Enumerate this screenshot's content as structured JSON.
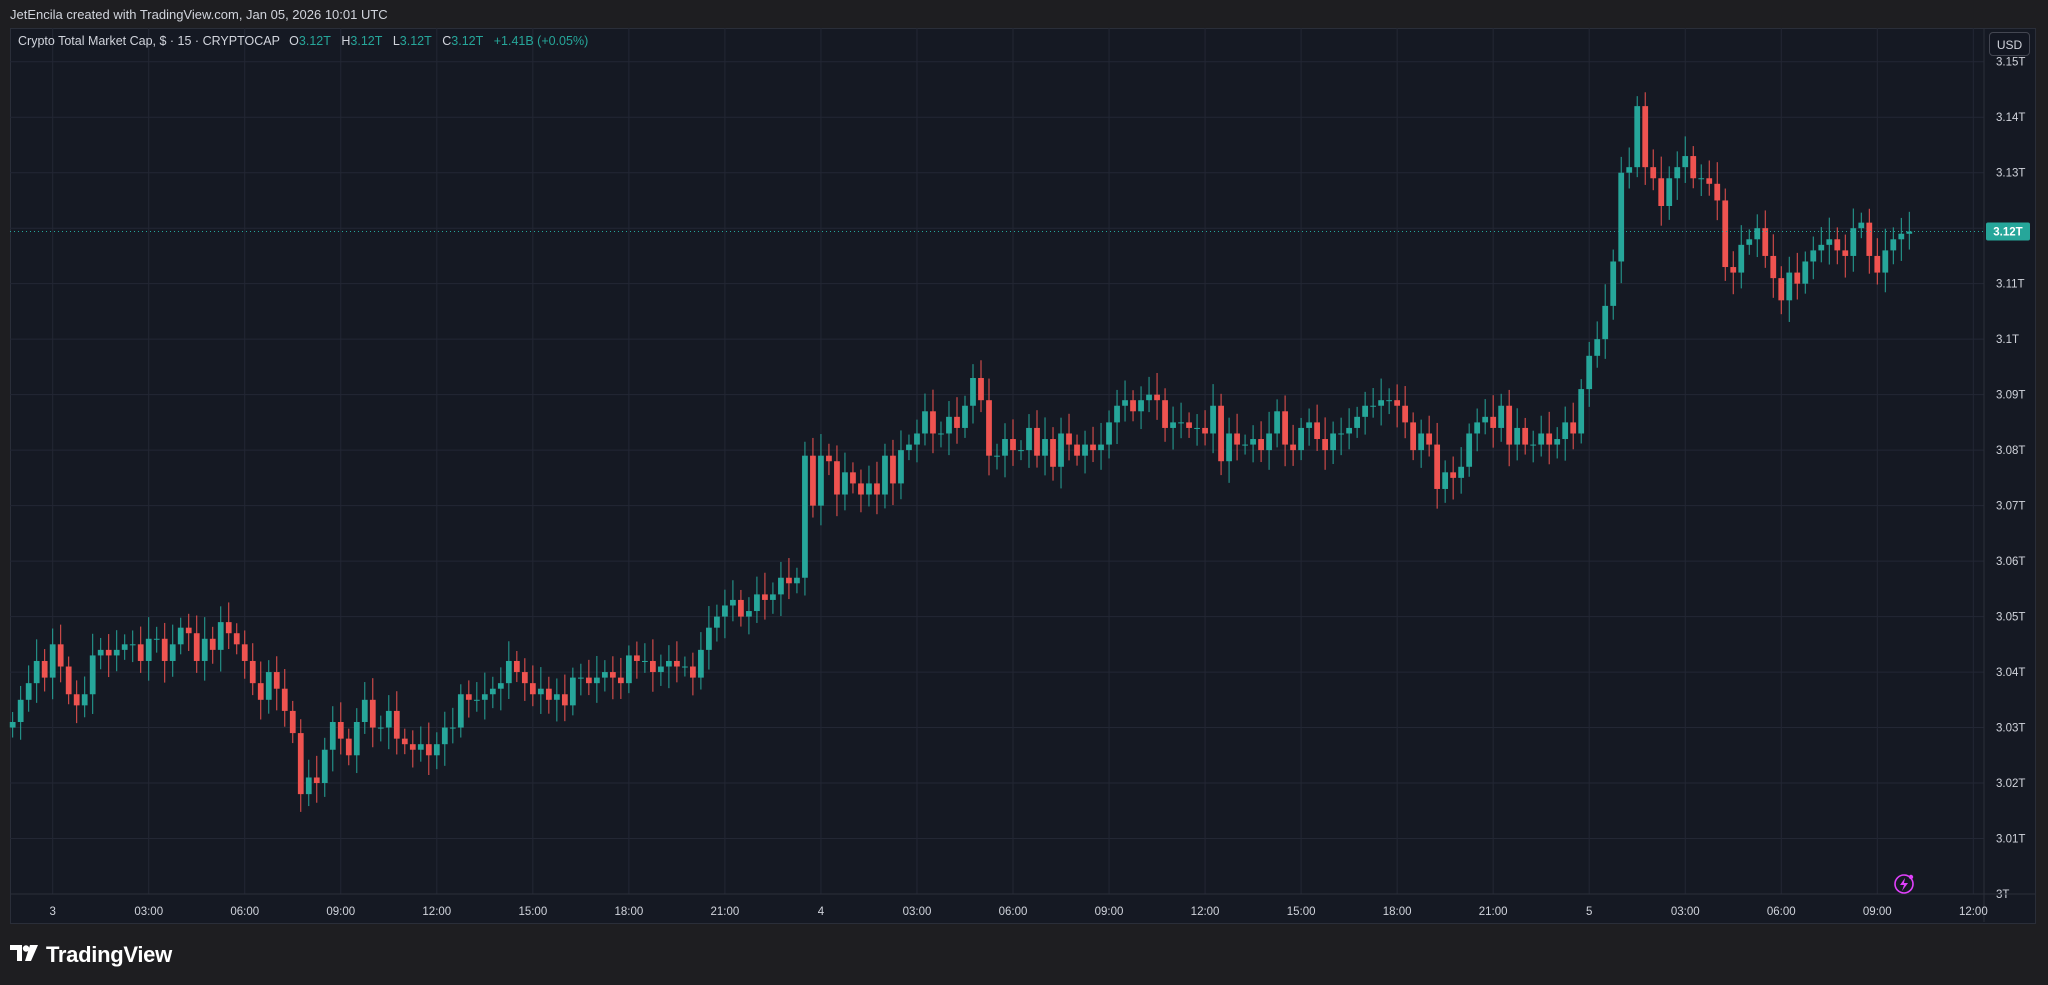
{
  "header": {
    "caption": "JetEncila created with TradingView.com, Jan 05, 2026 10:01 UTC"
  },
  "legend": {
    "symbol": "Crypto Total Market Cap, $ · 15 · CRYPTOCAP",
    "open_label": "O",
    "open": "3.12T",
    "high_label": "H",
    "high": "3.12T",
    "low_label": "L",
    "low": "3.12T",
    "close_label": "C",
    "close": "3.12T",
    "change": "+1.41B (+0.05%)"
  },
  "currency_button": "USD",
  "brand": {
    "name": "TradingView"
  },
  "colors": {
    "up": "#26a69a",
    "down": "#ef5350",
    "background": "#151923",
    "grid": "#232734",
    "text": "#d1d4dc",
    "last_price_line": "#26a69a",
    "alert_icon": "#e040fb"
  },
  "icons": {
    "alert": "lightning-bolt-icon",
    "logo": "tradingview-logo-icon"
  },
  "chart_data": {
    "type": "candlestick",
    "interval": "15",
    "y_unit": "T",
    "ylim": [
      3.0,
      3.155
    ],
    "yticks": [
      3.0,
      3.01,
      3.02,
      3.03,
      3.04,
      3.05,
      3.06,
      3.07,
      3.08,
      3.09,
      3.1,
      3.11,
      3.12,
      3.13,
      3.14,
      3.15
    ],
    "ytick_labels": [
      "3T",
      "3.01T",
      "3.02T",
      "3.03T",
      "3.04T",
      "3.05T",
      "3.06T",
      "3.07T",
      "3.08T",
      "3.09T",
      "3.1T",
      "3.11T",
      "3.12T",
      "3.13T",
      "3.14T",
      "3.15T"
    ],
    "last_price": 3.1194,
    "last_price_label": "3.12T",
    "x_start": "Jan 02 22:40",
    "x_end": "Jan 05 12:20",
    "xtick_times": [
      "Jan 03 00:00",
      "Jan 03 03:00",
      "Jan 03 06:00",
      "Jan 03 09:00",
      "Jan 03 12:00",
      "Jan 03 15:00",
      "Jan 03 18:00",
      "Jan 03 21:00",
      "Jan 04 00:00",
      "Jan 04 03:00",
      "Jan 04 06:00",
      "Jan 04 09:00",
      "Jan 04 12:00",
      "Jan 04 15:00",
      "Jan 04 18:00",
      "Jan 04 21:00",
      "Jan 05 00:00",
      "Jan 05 03:00",
      "Jan 05 06:00",
      "Jan 05 09:00",
      "Jan 05 12:00"
    ],
    "xtick_labels": [
      "3",
      "03:00",
      "06:00",
      "09:00",
      "12:00",
      "15:00",
      "18:00",
      "21:00",
      "4",
      "03:00",
      "06:00",
      "09:00",
      "12:00",
      "15:00",
      "18:00",
      "21:00",
      "5",
      "03:00",
      "06:00",
      "09:00",
      "12:00"
    ],
    "candle_start": "Jan 02 22:45",
    "candle_interval_min": 15,
    "closes": [
      3.031,
      3.035,
      3.038,
      3.042,
      3.039,
      3.045,
      3.041,
      3.036,
      3.034,
      3.036,
      3.043,
      3.044,
      3.043,
      3.044,
      3.045,
      3.045,
      3.042,
      3.046,
      3.046,
      3.042,
      3.045,
      3.048,
      3.047,
      3.042,
      3.046,
      3.044,
      3.049,
      3.047,
      3.045,
      3.042,
      3.038,
      3.035,
      3.04,
      3.037,
      3.033,
      3.029,
      3.018,
      3.021,
      3.02,
      3.026,
      3.031,
      3.028,
      3.025,
      3.031,
      3.035,
      3.03,
      3.03,
      3.033,
      3.028,
      3.027,
      3.026,
      3.027,
      3.025,
      3.027,
      3.03,
      3.03,
      3.036,
      3.035,
      3.035,
      3.036,
      3.037,
      3.038,
      3.042,
      3.04,
      3.038,
      3.036,
      3.037,
      3.035,
      3.036,
      3.034,
      3.039,
      3.039,
      3.038,
      3.039,
      3.04,
      3.039,
      3.038,
      3.043,
      3.042,
      3.042,
      3.04,
      3.041,
      3.042,
      3.041,
      3.041,
      3.039,
      3.044,
      3.048,
      3.05,
      3.052,
      3.053,
      3.05,
      3.051,
      3.054,
      3.053,
      3.054,
      3.057,
      3.056,
      3.057,
      3.079,
      3.07,
      3.079,
      3.078,
      3.072,
      3.076,
      3.074,
      3.072,
      3.074,
      3.072,
      3.079,
      3.074,
      3.08,
      3.081,
      3.083,
      3.087,
      3.083,
      3.083,
      3.086,
      3.084,
      3.088,
      3.093,
      3.089,
      3.079,
      3.079,
      3.082,
      3.08,
      3.08,
      3.084,
      3.079,
      3.082,
      3.077,
      3.083,
      3.081,
      3.079,
      3.081,
      3.08,
      3.081,
      3.085,
      3.088,
      3.089,
      3.087,
      3.089,
      3.09,
      3.089,
      3.084,
      3.085,
      3.085,
      3.084,
      3.084,
      3.083,
      3.088,
      3.078,
      3.083,
      3.081,
      3.081,
      3.082,
      3.08,
      3.083,
      3.087,
      3.081,
      3.08,
      3.084,
      3.085,
      3.082,
      3.08,
      3.083,
      3.083,
      3.084,
      3.086,
      3.088,
      3.088,
      3.089,
      3.089,
      3.088,
      3.085,
      3.08,
      3.083,
      3.081,
      3.073,
      3.076,
      3.075,
      3.077,
      3.083,
      3.085,
      3.086,
      3.084,
      3.088,
      3.081,
      3.084,
      3.081,
      3.081,
      3.083,
      3.081,
      3.082,
      3.085,
      3.083,
      3.091,
      3.097,
      3.1,
      3.106,
      3.114,
      3.13,
      3.131,
      3.142,
      3.131,
      3.129,
      3.124,
      3.129,
      3.131,
      3.133,
      3.129,
      3.129,
      3.128,
      3.125,
      3.113,
      3.112,
      3.117,
      3.118,
      3.12,
      3.115,
      3.111,
      3.107,
      3.112,
      3.11,
      3.114,
      3.116,
      3.117,
      3.118,
      3.116,
      3.115,
      3.12,
      3.121,
      3.115,
      3.112,
      3.116,
      3.118,
      3.119,
      3.1194
    ]
  }
}
